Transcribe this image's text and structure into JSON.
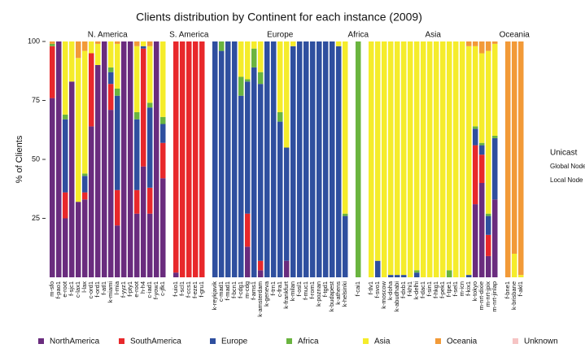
{
  "chart_data": {
    "type": "stacked_bar",
    "title": "Clients distribution by Continent for each instance (2009)",
    "y_label": "% of Clients",
    "ylim": [
      0,
      100
    ],
    "yticks": [
      25,
      50,
      75,
      100
    ],
    "categories": [
      "m-sfo",
      "f-pao1",
      "e-root",
      "f-sjc1",
      "c-lax1",
      "l-lax",
      "c-ord1",
      "f-ord1",
      "f-atl1",
      "k-miami",
      "l-mia",
      "f-yyz1",
      "f-pty1",
      "e-root",
      "h-h4",
      "c-iad1",
      "f-yow1",
      "c-jfk1",
      "f-uio1",
      "f-scl1",
      "f-ccs1",
      "f-eze1",
      "f-gru1",
      "k-reykjavik",
      "c-mad1",
      "f-mad1",
      "f-bcn1",
      "f-cdg1",
      "m-cdg",
      "f-ams1",
      "k-amsterdam",
      "k-geneva",
      "f-trn1",
      "c-fra1",
      "k-frankfurt",
      "k-milan",
      "f-osl1",
      "f-muc1",
      "f-rom1",
      "k-poznan",
      "f-tgd1",
      "k-budapest",
      "k-athens",
      "k-helsinki",
      "f-cai1",
      "f-tlv1",
      "f-svo1",
      "k-moscow",
      "k-doha",
      "k-abudhabi",
      "f-dxb1",
      "f-khi1",
      "k-delhi",
      "f-dac1",
      "f-sin1",
      "f-hkg1",
      "f-pek1",
      "f-tpe1",
      "f-sel1",
      "m-icn",
      "f-kix1",
      "k-tokyo",
      "m-nrt-dixie",
      "m-nrt-jpix",
      "m-nrt-jinlap",
      "f-bne1",
      "k-brisbane",
      "f-akl1"
    ],
    "groups": [
      "N. America",
      "N. America",
      "N. America",
      "N. America",
      "N. America",
      "N. America",
      "N. America",
      "N. America",
      "N. America",
      "N. America",
      "N. America",
      "N. America",
      "N. America",
      "N. America",
      "N. America",
      "N. America",
      "N. America",
      "N. America",
      "S. America",
      "S. America",
      "S. America",
      "S. America",
      "S. America",
      "Europe",
      "Europe",
      "Europe",
      "Europe",
      "Europe",
      "Europe",
      "Europe",
      "Europe",
      "Europe",
      "Europe",
      "Europe",
      "Europe",
      "Europe",
      "Europe",
      "Europe",
      "Europe",
      "Europe",
      "Europe",
      "Europe",
      "Europe",
      "Europe",
      "Africa",
      "Asia",
      "Asia",
      "Asia",
      "Asia",
      "Asia",
      "Asia",
      "Asia",
      "Asia",
      "Asia",
      "Asia",
      "Asia",
      "Asia",
      "Asia",
      "Asia",
      "Asia",
      "Asia",
      "Asia",
      "Asia",
      "Asia",
      "Asia",
      "Oceania",
      "Oceania",
      "Oceania"
    ],
    "label_colors": [
      "#111",
      "#111",
      "#2a9d5c",
      "#111",
      "#111",
      "#111",
      "#111",
      "#111",
      "#111",
      "#111",
      "#111",
      "#111",
      "#111",
      "#2a9d5c",
      "#2a9d5c",
      "#111",
      "#111",
      "#111",
      "#111",
      "#111",
      "#111",
      "#111",
      "#111",
      "#111",
      "#111",
      "#111",
      "#111",
      "#111",
      "#111",
      "#111",
      "#111",
      "#111",
      "#111",
      "#111",
      "#111",
      "#111",
      "#111",
      "#111",
      "#111",
      "#111",
      "#111",
      "#111",
      "#111",
      "#111",
      "#111",
      "#111",
      "#111",
      "#111",
      "#111",
      "#111",
      "#111",
      "#111",
      "#111",
      "#111",
      "#111",
      "#111",
      "#111",
      "#111",
      "#111",
      "#111",
      "#111",
      "#111",
      "#111",
      "#111",
      "#111",
      "#111",
      "#111",
      "#111"
    ],
    "node_legend": [
      {
        "label": "Unicast",
        "color": "#2a9d5c"
      },
      {
        "label": "Global Node",
        "color": "#111"
      },
      {
        "label": "Local Node",
        "color": "#111"
      }
    ],
    "series": [
      {
        "name": "NorthAmerica",
        "color": "#6a2c7e",
        "values": [
          76,
          100,
          25,
          83,
          32,
          33,
          64,
          90,
          100,
          71,
          22,
          100,
          100,
          27,
          47,
          27,
          100,
          42,
          2,
          0,
          0,
          0,
          0,
          0,
          0,
          0,
          0,
          0,
          13,
          0,
          3,
          0,
          0,
          0,
          7,
          0,
          0,
          0,
          0,
          0,
          0,
          0,
          0,
          0,
          0,
          0,
          0,
          0,
          0,
          0,
          0,
          0,
          0,
          0,
          0,
          0,
          0,
          0,
          0,
          0,
          0,
          31,
          40,
          9,
          33,
          0,
          0,
          0
        ]
      },
      {
        "name": "SouthAmerica",
        "color": "#e8282b",
        "values": [
          22,
          0,
          11,
          0,
          0,
          3,
          31,
          0,
          0,
          11,
          15,
          0,
          0,
          10,
          50,
          11,
          0,
          15,
          98,
          100,
          100,
          100,
          100,
          0,
          0,
          0,
          0,
          0,
          14,
          0,
          4,
          0,
          0,
          0,
          0,
          0,
          0,
          0,
          0,
          0,
          0,
          0,
          0,
          0,
          0,
          0,
          0,
          0,
          0,
          0,
          0,
          0,
          0,
          0,
          0,
          0,
          0,
          0,
          0,
          0,
          0,
          25,
          12,
          9,
          0,
          0,
          0,
          0
        ]
      },
      {
        "name": "Europe",
        "color": "#2f4f9f",
        "values": [
          0,
          0,
          31,
          0,
          0,
          7,
          0,
          0,
          0,
          5,
          40,
          0,
          0,
          30,
          1,
          34,
          0,
          8,
          0,
          0,
          0,
          0,
          0,
          100,
          96,
          100,
          100,
          77,
          56,
          89,
          75,
          100,
          100,
          66,
          48,
          98,
          100,
          100,
          100,
          100,
          100,
          100,
          98,
          26,
          0,
          0,
          7,
          0,
          1,
          1,
          1,
          0,
          2,
          0,
          0,
          0,
          0,
          0,
          0,
          0,
          1,
          7,
          4,
          8,
          26,
          0,
          0,
          0
        ]
      },
      {
        "name": "Africa",
        "color": "#6ab43f",
        "values": [
          1,
          0,
          2,
          0,
          0,
          1,
          0,
          0,
          0,
          2,
          3,
          0,
          0,
          3,
          0,
          2,
          0,
          3,
          0,
          0,
          0,
          0,
          0,
          0,
          4,
          0,
          0,
          8,
          1,
          8,
          5,
          0,
          0,
          4,
          0,
          0,
          0,
          0,
          0,
          0,
          0,
          0,
          0,
          1,
          100,
          0,
          0,
          0,
          0,
          0,
          0,
          0,
          1,
          0,
          0,
          0,
          0,
          3,
          0,
          0,
          0,
          1,
          1,
          1,
          1,
          0,
          0,
          0
        ]
      },
      {
        "name": "Asia",
        "color": "#f5ec2b",
        "values": [
          0,
          0,
          31,
          17,
          61,
          52,
          5,
          9,
          0,
          11,
          19,
          0,
          0,
          28,
          2,
          24,
          0,
          32,
          0,
          0,
          0,
          0,
          0,
          0,
          0,
          0,
          0,
          15,
          16,
          3,
          13,
          0,
          0,
          30,
          45,
          2,
          0,
          0,
          0,
          0,
          0,
          0,
          2,
          73,
          0,
          100,
          93,
          100,
          99,
          99,
          99,
          100,
          97,
          100,
          100,
          100,
          100,
          97,
          100,
          100,
          97,
          34,
          38,
          69,
          39,
          0,
          10,
          1
        ]
      },
      {
        "name": "Oceania",
        "color": "#f29a38",
        "values": [
          1,
          0,
          0,
          0,
          7,
          4,
          0,
          1,
          0,
          0,
          1,
          0,
          0,
          2,
          0,
          2,
          0,
          0,
          0,
          0,
          0,
          0,
          0,
          0,
          0,
          0,
          0,
          0,
          0,
          0,
          0,
          0,
          0,
          0,
          0,
          0,
          0,
          0,
          0,
          0,
          0,
          0,
          0,
          0,
          0,
          0,
          0,
          0,
          0,
          0,
          0,
          0,
          0,
          0,
          0,
          0,
          0,
          0,
          0,
          0,
          2,
          2,
          5,
          4,
          1,
          100,
          90,
          99
        ]
      },
      {
        "name": "Unknown",
        "color": "#f6c4c4",
        "values": [
          0,
          0,
          0,
          0,
          0,
          0,
          0,
          0,
          0,
          0,
          0,
          0,
          0,
          0,
          0,
          0,
          0,
          0,
          0,
          0,
          0,
          0,
          0,
          0,
          0,
          0,
          0,
          0,
          0,
          0,
          0,
          0,
          0,
          0,
          0,
          0,
          0,
          0,
          0,
          0,
          0,
          0,
          0,
          0,
          0,
          0,
          0,
          0,
          0,
          0,
          0,
          0,
          0,
          0,
          0,
          0,
          0,
          0,
          0,
          0,
          0,
          0,
          0,
          0,
          0,
          0,
          0,
          0
        ]
      }
    ]
  }
}
